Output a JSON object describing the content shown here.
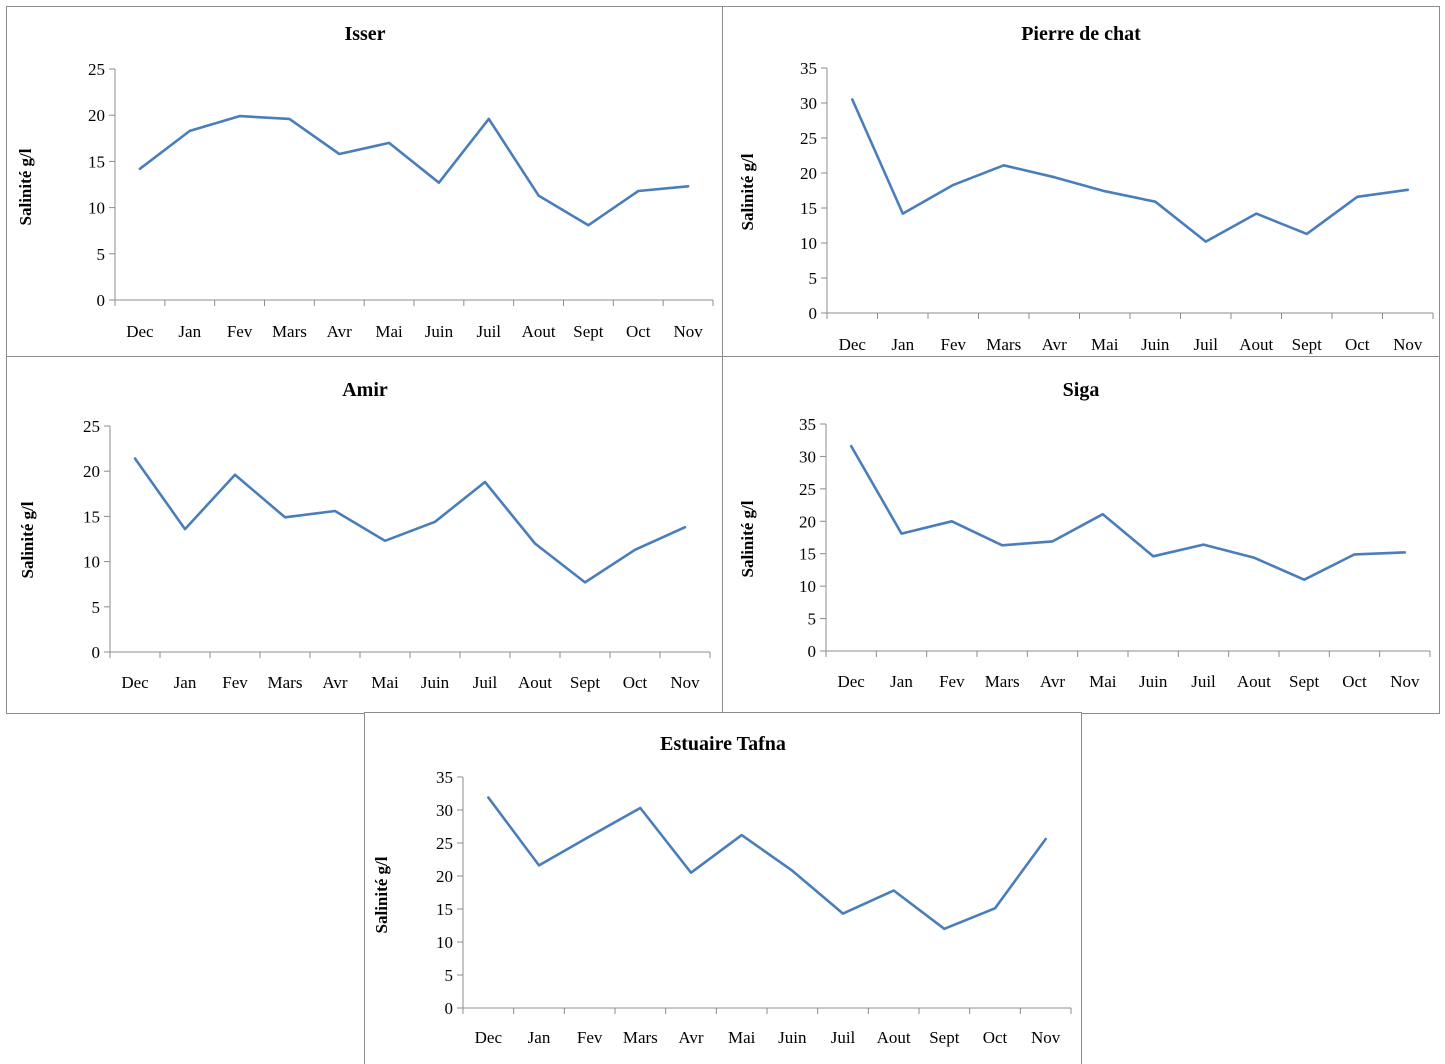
{
  "chart_data": [
    {
      "type": "line",
      "title": "Isser",
      "xlabel": "",
      "ylabel": "Salinité g/l",
      "categories": [
        "Dec",
        "Jan",
        "Fev",
        "Mars",
        "Avr",
        "Mai",
        "Juin",
        "Juil",
        "Aout",
        "Sept",
        "Oct",
        "Nov"
      ],
      "ylim": [
        0,
        25
      ],
      "yticks": [
        0,
        5,
        10,
        15,
        20,
        25
      ],
      "series": [
        {
          "values": [
            14.2,
            18.3,
            19.9,
            19.6,
            15.8,
            17.0,
            12.7,
            19.6,
            11.3,
            8.1,
            11.8,
            12.3
          ]
        }
      ],
      "legend": false
    },
    {
      "type": "line",
      "title": "Pierre de chat",
      "xlabel": "",
      "ylabel": "Salinité g/l",
      "categories": [
        "Dec",
        "Jan",
        "Fev",
        "Mars",
        "Avr",
        "Mai",
        "Juin",
        "Juil",
        "Aout",
        "Sept",
        "Oct",
        "Nov"
      ],
      "ylim": [
        0,
        35
      ],
      "yticks": [
        0,
        5,
        10,
        15,
        20,
        25,
        30,
        35
      ],
      "series": [
        {
          "values": [
            30.5,
            14.2,
            18.3,
            21.1,
            19.4,
            17.4,
            15.9,
            10.2,
            14.2,
            11.3,
            16.6,
            17.6
          ]
        }
      ],
      "legend": false
    },
    {
      "type": "line",
      "title": "Amir",
      "xlabel": "",
      "ylabel": "Salinité g/l",
      "categories": [
        "Dec",
        "Jan",
        "Fev",
        "Mars",
        "Avr",
        "Mai",
        "Juin",
        "Juil",
        "Aout",
        "Sept",
        "Oct",
        "Nov"
      ],
      "ylim": [
        0,
        25
      ],
      "yticks": [
        0,
        5,
        10,
        15,
        20,
        25
      ],
      "series": [
        {
          "values": [
            21.4,
            13.6,
            19.6,
            14.9,
            15.6,
            12.3,
            14.4,
            18.8,
            12.0,
            7.7,
            11.3,
            13.8
          ]
        }
      ],
      "legend": false
    },
    {
      "type": "line",
      "title": "Siga",
      "xlabel": "",
      "ylabel": "Salinité g/l",
      "categories": [
        "Dec",
        "Jan",
        "Fev",
        "Mars",
        "Avr",
        "Mai",
        "Juin",
        "Juil",
        "Aout",
        "Sept",
        "Oct",
        "Nov"
      ],
      "ylim": [
        0,
        35
      ],
      "yticks": [
        0,
        5,
        10,
        15,
        20,
        25,
        30,
        35
      ],
      "series": [
        {
          "values": [
            31.6,
            18.1,
            20.0,
            16.3,
            16.9,
            21.1,
            14.6,
            16.4,
            14.4,
            11.0,
            14.9,
            15.2
          ]
        }
      ],
      "legend": false
    },
    {
      "type": "line",
      "title": "Estuaire Tafna",
      "xlabel": "",
      "ylabel": "Salinité g/l",
      "categories": [
        "Dec",
        "Jan",
        "Fev",
        "Mars",
        "Avr",
        "Mai",
        "Juin",
        "Juil",
        "Aout",
        "Sept",
        "Oct",
        "Nov"
      ],
      "ylim": [
        0,
        35
      ],
      "yticks": [
        0,
        5,
        10,
        15,
        20,
        25,
        30,
        35
      ],
      "series": [
        {
          "values": [
            31.9,
            21.6,
            26.0,
            30.3,
            20.5,
            26.2,
            20.8,
            14.3,
            17.8,
            12.0,
            15.1,
            25.6
          ]
        }
      ],
      "legend": false
    }
  ],
  "colors": {
    "line": "#4a7ebb",
    "axis": "#8c8c8c",
    "text": "#000000"
  }
}
